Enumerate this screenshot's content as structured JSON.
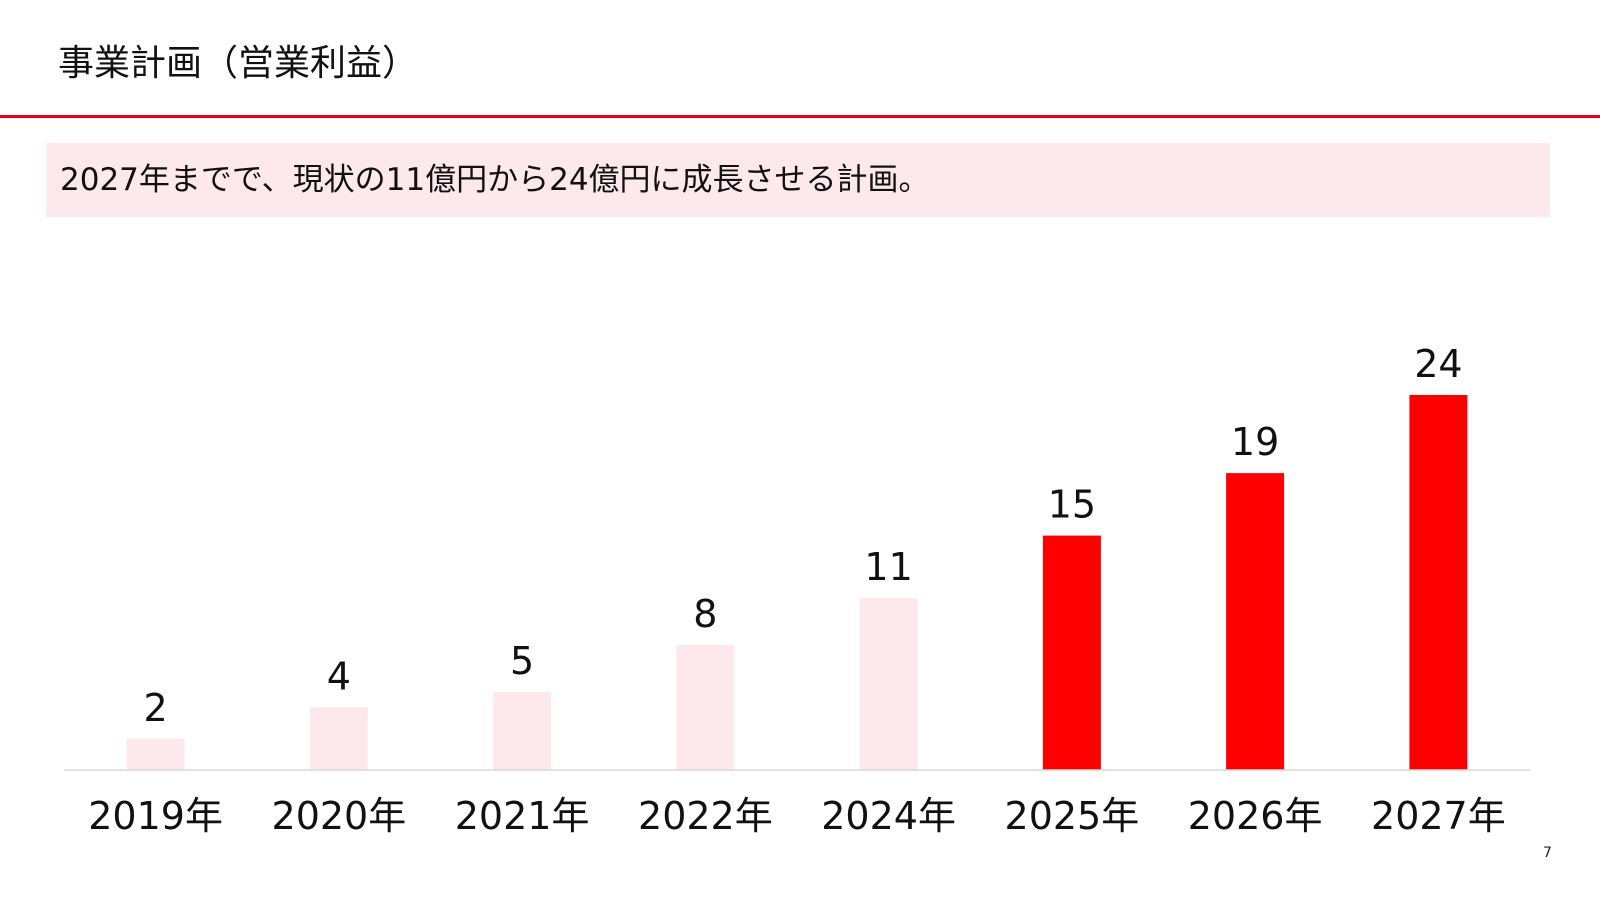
{
  "slide": {
    "title": "事業計画（営業利益）",
    "banner": "2027年までで、現状の11億円から24億円に成長させる計画。",
    "page_number": "7"
  },
  "colors": {
    "accent": "#ff0000",
    "rule": "#e60012",
    "highlight_bg": "#fde9eb",
    "bar_actual": "#fde9eb",
    "bar_plan": "#ff0000"
  },
  "chart_data": {
    "type": "bar",
    "categories": [
      "2019年",
      "2020年",
      "2021年",
      "2022年",
      "2024年",
      "2025年",
      "2026年",
      "2027年"
    ],
    "values": [
      2,
      4,
      5,
      8,
      11,
      15,
      19,
      24
    ],
    "bar_colors": [
      "#fde9eb",
      "#fde9eb",
      "#fde9eb",
      "#fde9eb",
      "#fde9eb",
      "#ff0000",
      "#ff0000",
      "#ff0000"
    ],
    "title": "",
    "xlabel": "",
    "ylabel": "",
    "ylim": [
      0,
      24
    ],
    "data_labels": true,
    "grid": false,
    "legend": "none"
  }
}
